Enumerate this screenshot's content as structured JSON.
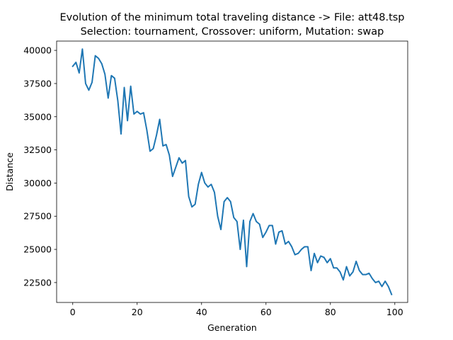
{
  "chart_data": {
    "type": "line",
    "title": "Evolution of the minimum total traveling distance -> File: att48.tsp",
    "subtitle": "Selection: tournament, Crossover: uniform, Mutation: swap",
    "xlabel": "Generation",
    "ylabel": "Distance",
    "xlim": [
      -5,
      104
    ],
    "ylim": [
      21000,
      40700
    ],
    "xticks": [
      0,
      20,
      40,
      60,
      80,
      100
    ],
    "xtick_labels": [
      "0",
      "20",
      "40",
      "60",
      "80",
      "100"
    ],
    "yticks": [
      22500,
      25000,
      27500,
      30000,
      32500,
      35000,
      37500,
      40000
    ],
    "ytick_labels": [
      "22500",
      "25000",
      "27500",
      "30000",
      "32500",
      "35000",
      "37500",
      "40000"
    ],
    "grid": false,
    "series": [
      {
        "color": "#1f77b4",
        "x": [
          0,
          1,
          2,
          3,
          4,
          5,
          6,
          7,
          8,
          9,
          10,
          11,
          12,
          13,
          14,
          15,
          16,
          17,
          18,
          19,
          20,
          21,
          22,
          23,
          24,
          25,
          26,
          27,
          28,
          29,
          30,
          31,
          32,
          33,
          34,
          35,
          36,
          37,
          38,
          39,
          40,
          41,
          42,
          43,
          44,
          45,
          46,
          47,
          48,
          49,
          50,
          51,
          52,
          53,
          54,
          55,
          56,
          57,
          58,
          59,
          60,
          61,
          62,
          63,
          64,
          65,
          66,
          67,
          68,
          69,
          70,
          71,
          72,
          73,
          74,
          75,
          76,
          77,
          78,
          79,
          80,
          81,
          82,
          83,
          84,
          85,
          86,
          87,
          88,
          89,
          90,
          91,
          92,
          93,
          94,
          95,
          96,
          97,
          98,
          99
        ],
        "y": [
          38800,
          39100,
          38300,
          40100,
          37500,
          37000,
          37600,
          39600,
          39400,
          39000,
          38200,
          36400,
          38100,
          37900,
          36200,
          33700,
          37200,
          34700,
          37300,
          35200,
          35400,
          35200,
          35300,
          34000,
          32400,
          32600,
          33600,
          34800,
          32800,
          32900,
          32100,
          30500,
          31200,
          31900,
          31500,
          31700,
          29000,
          28200,
          28400,
          29900,
          30800,
          30000,
          29700,
          29900,
          29300,
          27500,
          26500,
          28600,
          28900,
          28600,
          27400,
          27100,
          25000,
          27200,
          23700,
          27100,
          27700,
          27100,
          26900,
          25900,
          26300,
          26800,
          26800,
          25400,
          26300,
          26400,
          25400,
          25600,
          25200,
          24600,
          24700,
          25000,
          25200,
          25200,
          23400,
          24700,
          24000,
          24500,
          24400,
          24000,
          24300,
          23600,
          23600,
          23300,
          22700,
          23700,
          23000,
          23300,
          24100,
          23400,
          23100,
          23100,
          23200,
          22800,
          22500,
          22600,
          22200,
          22600,
          22200,
          21600
        ]
      }
    ]
  }
}
